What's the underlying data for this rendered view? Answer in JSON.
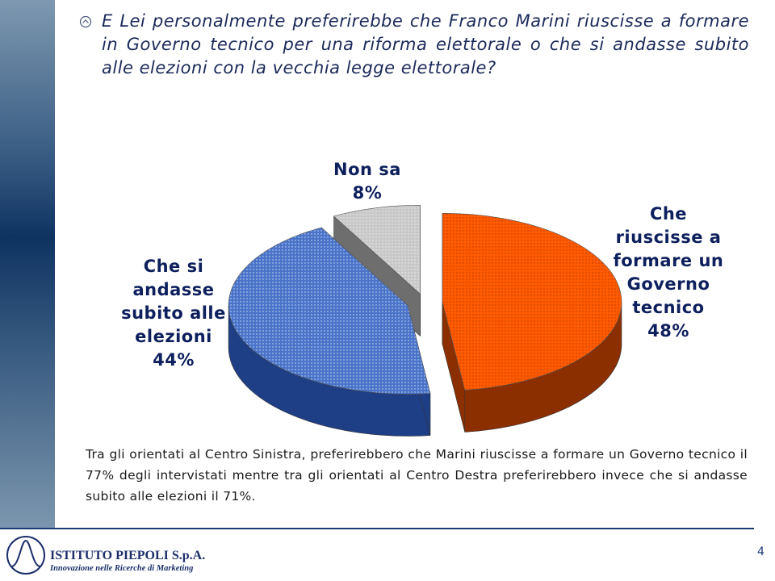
{
  "question": {
    "text": "E Lei personalmente preferirebbe che Franco Marini riuscisse a formare in Governo tecnico per una riforma elettorale o che si andasse subito alle elezioni con la vecchia legge elettorale?"
  },
  "chart_data": {
    "type": "pie",
    "slices": [
      {
        "label_lines": [
          "Che",
          "riuscisse a",
          "formare un",
          "Governo",
          "tecnico"
        ],
        "value": 48,
        "value_label": "48%",
        "color": "#ff5a00",
        "side_color": "#8b2f00"
      },
      {
        "label_lines": [
          "Che si",
          "andasse",
          "subito alle",
          "elezioni"
        ],
        "value": 44,
        "value_label": "44%",
        "color": "#4a74c9",
        "side_color": "#1e3f86"
      },
      {
        "label_lines": [
          "Non sa"
        ],
        "value": 8,
        "value_label": "8%",
        "color": "#c8c8c8",
        "side_color": "#6e6e6e"
      }
    ]
  },
  "note": {
    "text": "Tra gli orientati al Centro Sinistra, preferirebbero che Marini riuscisse a formare un Governo tecnico il 77% degli intervistati mentre tra gli orientati al Centro Destra preferirebbero invece che si andasse subito alle elezioni il 71%."
  },
  "footer": {
    "brand": "ISTITUTO PIEPOLI S.p.A.",
    "tagline": "Innovazione nelle Ricerche di Marketing",
    "page_number": "4"
  }
}
